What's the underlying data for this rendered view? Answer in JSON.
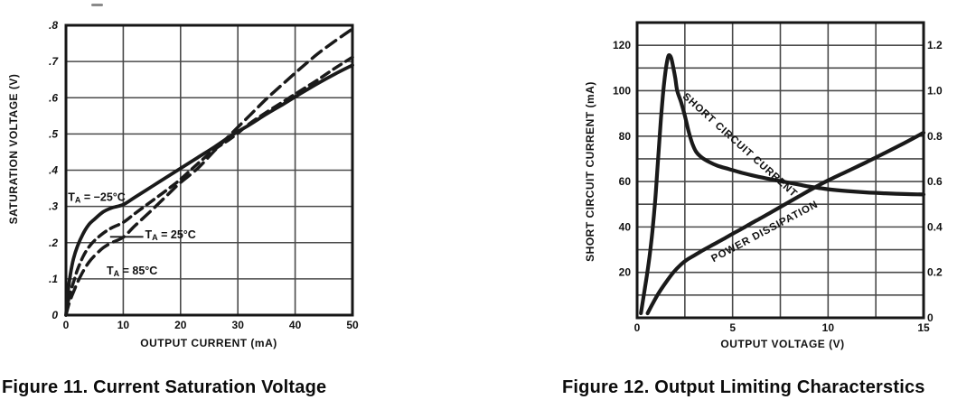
{
  "figures": {
    "fig11_caption": "Figure 11. Current Saturation Voltage",
    "fig12_caption": "Figure 12. Output Limiting Characterstics"
  },
  "colors": {
    "curve": "#1a1a1a",
    "grid": "#4a4a4a",
    "border": "#161616",
    "text": "#111111"
  },
  "chart_data": [
    {
      "type": "line",
      "title": "Figure 11. Current Saturation Voltage",
      "xlabel": "OUTPUT CURRENT (mA)",
      "ylabel": "SATURATION VOLTAGE (V)",
      "xlim": [
        0,
        50
      ],
      "ylim": [
        0,
        0.8
      ],
      "grid": "on",
      "x_gridlines": [
        0,
        10,
        20,
        30,
        40,
        50
      ],
      "y_gridlines": [
        0,
        0.1,
        0.2,
        0.3,
        0.4,
        0.5,
        0.6,
        0.7,
        0.8
      ],
      "x_ticks": [
        {
          "v": 0,
          "label": "0"
        },
        {
          "v": 10,
          "label": "10"
        },
        {
          "v": 20,
          "label": "20"
        },
        {
          "v": 30,
          "label": "30"
        },
        {
          "v": 40,
          "label": "40"
        },
        {
          "v": 50,
          "label": "50"
        }
      ],
      "y_ticks": [
        {
          "v": 0,
          "label": "0"
        },
        {
          "v": 0.1,
          "label": ".1"
        },
        {
          "v": 0.2,
          "label": ".2"
        },
        {
          "v": 0.3,
          "label": ".3"
        },
        {
          "v": 0.4,
          "label": ".4"
        },
        {
          "v": 0.5,
          "label": ".5"
        },
        {
          "v": 0.6,
          "label": ".6"
        },
        {
          "v": 0.7,
          "label": ".7"
        },
        {
          "v": 0.8,
          "label": ".8"
        }
      ],
      "y_ticks_italic": true,
      "series": [
        {
          "name": "TA = -25°C",
          "slug": "ta-minus-25c",
          "dash": null,
          "width": 3.8,
          "points": [
            [
              0,
              0
            ],
            [
              0.4,
              0.07
            ],
            [
              0.8,
              0.115
            ],
            [
              1.3,
              0.155
            ],
            [
              2,
              0.19
            ],
            [
              3,
              0.225
            ],
            [
              4,
              0.25
            ],
            [
              5,
              0.265
            ],
            [
              6.5,
              0.285
            ],
            [
              8,
              0.296
            ],
            [
              10,
              0.305
            ],
            [
              12,
              0.325
            ],
            [
              15,
              0.355
            ],
            [
              18,
              0.385
            ],
            [
              20,
              0.405
            ],
            [
              23,
              0.435
            ],
            [
              26,
              0.465
            ],
            [
              29,
              0.497
            ],
            [
              32,
              0.525
            ],
            [
              35,
              0.555
            ],
            [
              38,
              0.583
            ],
            [
              41,
              0.612
            ],
            [
              44,
              0.64
            ],
            [
              47,
              0.666
            ],
            [
              50,
              0.69
            ]
          ]
        },
        {
          "name": "TA = 25°C",
          "slug": "ta-25c",
          "dash": "10 6",
          "width": 3.5,
          "points": [
            [
              0,
              0
            ],
            [
              0.5,
              0.045
            ],
            [
              1,
              0.075
            ],
            [
              1.5,
              0.1
            ],
            [
              2,
              0.125
            ],
            [
              3,
              0.162
            ],
            [
              4,
              0.188
            ],
            [
              5,
              0.206
            ],
            [
              6.5,
              0.226
            ],
            [
              8,
              0.241
            ],
            [
              10,
              0.256
            ],
            [
              12,
              0.28
            ],
            [
              15,
              0.315
            ],
            [
              18,
              0.35
            ],
            [
              20,
              0.375
            ],
            [
              23,
              0.418
            ],
            [
              26,
              0.458
            ],
            [
              29,
              0.49
            ],
            [
              32,
              0.528
            ],
            [
              35,
              0.56
            ],
            [
              38,
              0.59
            ],
            [
              41,
              0.62
            ],
            [
              44,
              0.65
            ],
            [
              47,
              0.682
            ],
            [
              50,
              0.712
            ]
          ]
        },
        {
          "name": "TA = 85°C",
          "slug": "ta-85c",
          "dash": "13 7",
          "width": 3.5,
          "points": [
            [
              0,
              0
            ],
            [
              0.5,
              0.03
            ],
            [
              1,
              0.052
            ],
            [
              1.5,
              0.071
            ],
            [
              2,
              0.09
            ],
            [
              3,
              0.121
            ],
            [
              4,
              0.146
            ],
            [
              5,
              0.164
            ],
            [
              6.5,
              0.186
            ],
            [
              8,
              0.2
            ],
            [
              10,
              0.215
            ],
            [
              12,
              0.246
            ],
            [
              15,
              0.29
            ],
            [
              18,
              0.336
            ],
            [
              20,
              0.366
            ],
            [
              23,
              0.405
            ],
            [
              26,
              0.455
            ],
            [
              29,
              0.503
            ],
            [
              32,
              0.55
            ],
            [
              35,
              0.597
            ],
            [
              38,
              0.64
            ],
            [
              41,
              0.682
            ],
            [
              44,
              0.722
            ],
            [
              47,
              0.757
            ],
            [
              50,
              0.79
            ]
          ]
        }
      ],
      "annotations": [
        {
          "slug": "label-ta-minus-25c",
          "x": 0.35,
          "y": 0.325,
          "rotate": 0,
          "size": 12.5,
          "ls": 0,
          "parts": [
            {
              "t": "T"
            },
            {
              "t": "A",
              "sub": true
            },
            {
              "t": " = −25°C"
            }
          ],
          "leader": null
        },
        {
          "slug": "label-ta-25c",
          "x": 13.8,
          "y": 0.222,
          "rotate": 0,
          "size": 12.5,
          "ls": 0,
          "parts": [
            {
              "t": "T"
            },
            {
              "t": "A",
              "sub": true
            },
            {
              "t": " = 25°C"
            }
          ],
          "leader": [
            [
              7.7,
              0.216
            ],
            [
              13.5,
              0.216
            ]
          ]
        },
        {
          "slug": "label-ta-85c",
          "x": 7.1,
          "y": 0.122,
          "rotate": 0,
          "size": 12.5,
          "ls": 0,
          "parts": [
            {
              "t": "T"
            },
            {
              "t": "A",
              "sub": true
            },
            {
              "t": " = 85°C"
            }
          ],
          "leader": null
        }
      ]
    },
    {
      "type": "line",
      "title": "Figure 12. Output Limiting Characterstics",
      "xlabel": "OUTPUT VOLTAGE (V)",
      "ylabel": "SHORT CIRCUIT CURRENT (mA)",
      "y2label": "",
      "xlim": [
        0,
        15
      ],
      "ylim": [
        0,
        130
      ],
      "y2lim": [
        0,
        1.3
      ],
      "grid": "on",
      "x_gridlines": [
        0,
        2.5,
        5,
        7.5,
        10,
        12.5,
        15
      ],
      "y_gridlines": [
        0,
        10,
        20,
        30,
        40,
        50,
        60,
        70,
        80,
        90,
        100,
        110,
        120,
        130
      ],
      "x_ticks": [
        {
          "v": 0,
          "label": "0"
        },
        {
          "v": 5,
          "label": "5"
        },
        {
          "v": 10,
          "label": "10"
        },
        {
          "v": 15,
          "label": "15"
        }
      ],
      "y_ticks": [
        {
          "v": 20,
          "label": "20"
        },
        {
          "v": 40,
          "label": "40"
        },
        {
          "v": 60,
          "label": "60"
        },
        {
          "v": 80,
          "label": "80"
        },
        {
          "v": 100,
          "label": "100"
        },
        {
          "v": 120,
          "label": "120"
        }
      ],
      "y2_ticks": [
        {
          "v": 0,
          "label": "0"
        },
        {
          "v": 20,
          "label": "0.2"
        },
        {
          "v": 40,
          "label": "0.4"
        },
        {
          "v": 60,
          "label": "0.6"
        },
        {
          "v": 80,
          "label": "0.8"
        },
        {
          "v": 100,
          "label": "1.0"
        },
        {
          "v": 120,
          "label": "1.2"
        }
      ],
      "y_ticks_italic": false,
      "series": [
        {
          "name": "SHORT CIRCUIT CURRENT",
          "slug": "short-circuit-current",
          "dash": null,
          "width": 4.2,
          "points": [
            [
              0.2,
              2
            ],
            [
              0.35,
              10
            ],
            [
              0.5,
              18
            ],
            [
              0.65,
              27
            ],
            [
              0.8,
              38
            ],
            [
              0.95,
              52
            ],
            [
              1.05,
              64
            ],
            [
              1.15,
              76
            ],
            [
              1.25,
              88
            ],
            [
              1.35,
              98
            ],
            [
              1.45,
              106
            ],
            [
              1.55,
              112
            ],
            [
              1.65,
              115.5
            ],
            [
              1.78,
              114.5
            ],
            [
              1.9,
              110
            ],
            [
              2.0,
              105.5
            ],
            [
              2.1,
              100
            ],
            [
              2.3,
              95
            ],
            [
              2.5,
              89
            ],
            [
              2.7,
              82
            ],
            [
              2.9,
              76.5
            ],
            [
              3.1,
              73
            ],
            [
              3.4,
              70.5
            ],
            [
              3.8,
              68.5
            ],
            [
              4.2,
              67
            ],
            [
              4.8,
              65.5
            ],
            [
              5.5,
              63.8
            ],
            [
              6.2,
              62.4
            ],
            [
              7.0,
              61
            ],
            [
              7.5,
              60.2
            ],
            [
              8.0,
              59.4
            ],
            [
              8.5,
              58.6
            ],
            [
              9.0,
              57.8
            ],
            [
              9.5,
              57.2
            ],
            [
              10.0,
              56.6
            ],
            [
              11,
              55.8
            ],
            [
              12,
              55.2
            ],
            [
              13,
              54.8
            ],
            [
              14,
              54.5
            ],
            [
              15,
              54.3
            ]
          ]
        },
        {
          "name": "POWER DISSIPATION",
          "slug": "power-dissipation",
          "dash": null,
          "width": 4.2,
          "points": [
            [
              0.55,
              2
            ],
            [
              0.8,
              6
            ],
            [
              1.1,
              10.5
            ],
            [
              1.5,
              15.5
            ],
            [
              1.9,
              20
            ],
            [
              2.3,
              23.5
            ],
            [
              2.6,
              25.5
            ],
            [
              3.0,
              27.5
            ],
            [
              3.5,
              30
            ],
            [
              4.0,
              32.3
            ],
            [
              4.5,
              34.6
            ],
            [
              5.0,
              37
            ],
            [
              5.5,
              39.3
            ],
            [
              6.0,
              41.7
            ],
            [
              6.5,
              44
            ],
            [
              7.0,
              46.4
            ],
            [
              7.5,
              48.8
            ],
            [
              8.0,
              51.2
            ],
            [
              8.5,
              53.6
            ],
            [
              9.0,
              56
            ],
            [
              9.5,
              58.3
            ],
            [
              10.0,
              60.5
            ],
            [
              11,
              64.5
            ],
            [
              12,
              68.5
            ],
            [
              13,
              72.7
            ],
            [
              14,
              77
            ],
            [
              15,
              81.5
            ]
          ]
        }
      ],
      "annotations": [
        {
          "slug": "label-short-circuit-current",
          "x": 2.45,
          "y": 98,
          "rotate": 42,
          "size": 11.5,
          "ls": 0.8,
          "parts": [
            {
              "t": "SHORT CIRCUIT CURRENT"
            }
          ],
          "leader": null
        },
        {
          "slug": "label-power-dissipation",
          "x": 3.93,
          "y": 25.5,
          "rotate": -28,
          "size": 11.5,
          "ls": 0.8,
          "parts": [
            {
              "t": "POWER DISSIPATION"
            }
          ],
          "leader": null
        }
      ]
    }
  ]
}
